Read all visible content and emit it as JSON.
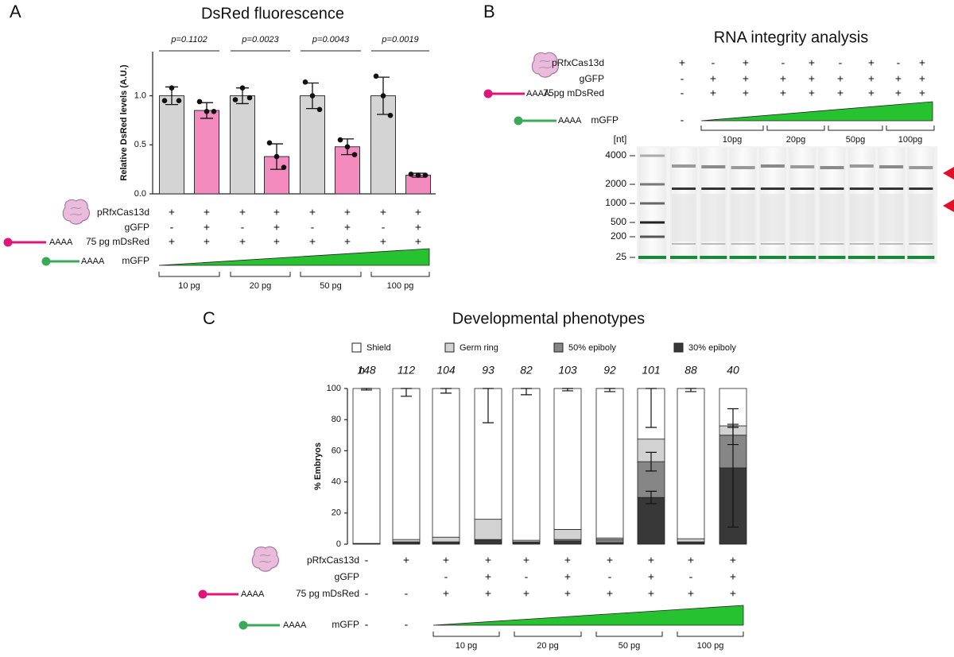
{
  "panel_labels": [
    "A",
    "B",
    "C"
  ],
  "poly_a": "AAAA",
  "chart_data": [
    {
      "type": "bar",
      "title": "DsRed fluorescence",
      "y_label": "Relative DsRed levels (A.U.)",
      "ylim": [
        0,
        1.45
      ],
      "yticks": [
        {
          "value": 0,
          "label": "0.0"
        },
        {
          "value": 0.5,
          "label": "0.5"
        },
        {
          "value": 1,
          "label": "1.0"
        }
      ],
      "values": [
        1.0,
        0.85,
        1.0,
        0.38,
        1.0,
        0.48,
        1.0,
        0.19
      ],
      "errors": [
        0.09,
        0.08,
        0.08,
        0.13,
        0.13,
        0.08,
        0.19,
        0.02
      ],
      "points": [
        [
          0.95,
          1.08,
          0.95
        ],
        [
          0.94,
          0.84,
          0.84
        ],
        [
          0.96,
          1.08,
          0.98
        ],
        [
          0.52,
          0.38,
          0.27
        ],
        [
          1.14,
          1.0,
          0.86
        ],
        [
          0.55,
          0.48,
          0.4
        ],
        [
          1.2,
          1.0,
          0.8
        ],
        [
          0.2,
          0.19,
          0.19
        ]
      ],
      "colors": [
        "#d4d4d4",
        "#f38bbf",
        "#d4d4d4",
        "#f38bbf",
        "#d4d4d4",
        "#f38bbf",
        "#d4d4d4",
        "#f38bbf"
      ],
      "annotations": [
        "p=0.1102",
        "p=0.0023",
        "p=0.0043",
        "p=0.0019"
      ]
    },
    {
      "type": "stacked_bar",
      "title": "Developmental phenotypes",
      "y_label": "% Embryos",
      "ylim": [
        0,
        100
      ],
      "yticks": [
        0,
        20,
        40,
        60,
        80,
        100
      ],
      "n_label": "n",
      "n": [
        148,
        112,
        104,
        93,
        82,
        103,
        92,
        101,
        88,
        40
      ],
      "series": [
        {
          "name": "Shield",
          "color": "#ffffff",
          "values": [
            99.5,
            97,
            95.5,
            84,
            97.5,
            90.5,
            96,
            32.5,
            96.5,
            24
          ],
          "errors": [
            1,
            5,
            3,
            22,
            4,
            1.5,
            2,
            25,
            2,
            null
          ]
        },
        {
          "name": "Germ ring",
          "color": "#d2d2d2",
          "values": [
            0,
            1.5,
            3,
            13,
            1,
            6.5,
            1,
            14.5,
            2,
            6
          ],
          "errors": [
            null,
            null,
            null,
            null,
            null,
            null,
            null,
            null,
            null,
            1
          ]
        },
        {
          "name": "50% epiboly",
          "color": "#868686",
          "values": [
            0,
            0.5,
            0.5,
            0,
            0.5,
            1,
            2,
            23,
            0.5,
            21
          ],
          "errors": [
            null,
            null,
            null,
            null,
            null,
            null,
            null,
            6,
            null,
            6
          ]
        },
        {
          "name": "30% epiboly",
          "color": "#383838",
          "values": [
            0.5,
            1,
            1,
            3,
            1,
            2,
            1,
            30,
            1,
            49
          ],
          "errors": [
            null,
            null,
            null,
            null,
            null,
            null,
            null,
            4,
            null,
            38
          ]
        }
      ]
    }
  ],
  "panel_a_conditions": {
    "rows": [
      {
        "label": "pRfxCas13d",
        "marks": [
          "+",
          "+",
          "+",
          "+",
          "+",
          "+",
          "+",
          "+"
        ]
      },
      {
        "label": "gGFP",
        "marks": [
          "-",
          "+",
          "-",
          "+",
          "-",
          "+",
          "-",
          "+"
        ]
      },
      {
        "label": "75 pg mDsRed",
        "marks": [
          "+",
          "+",
          "+",
          "+",
          "+",
          "+",
          "+",
          "+"
        ]
      }
    ],
    "mgfp_label": "mGFP",
    "doses": [
      "10 pg",
      "20 pg",
      "50 pg",
      "100 pg"
    ]
  },
  "panel_b": {
    "title": "RNA integrity analysis",
    "rows": [
      {
        "label": "pRfxCas13d",
        "marks": [
          "+",
          "-",
          "+",
          "-",
          "+",
          "-",
          "+",
          "-",
          "+"
        ]
      },
      {
        "label": "gGFP",
        "marks": [
          "-",
          "+",
          "+",
          "+",
          "+",
          "+",
          "+",
          "+",
          "+"
        ]
      },
      {
        "label": "75pg mDsRed",
        "marks": [
          "-",
          "+",
          "+",
          "+",
          "+",
          "+",
          "+",
          "+",
          "+"
        ]
      }
    ],
    "mgfp_label": "mGFP",
    "mgfp_marks": [
      "-"
    ],
    "doses": [
      "10pg",
      "20pg",
      "50pg",
      "100pg"
    ],
    "size_unit": "[nt]",
    "size_ladder": [
      4000,
      2000,
      1000,
      500,
      200,
      25
    ]
  },
  "panel_c_conditions": {
    "rows": [
      {
        "label": "pRfxCas13d",
        "marks": [
          "-",
          "+",
          "+",
          "+",
          "+",
          "+",
          "+",
          "+",
          "+",
          "+"
        ]
      },
      {
        "label": "gGFP",
        "marks": [
          null,
          null,
          "-",
          "+",
          "-",
          "+",
          "-",
          "+",
          "-",
          "+"
        ]
      },
      {
        "label": "75 pg mDsRed",
        "marks": [
          "-",
          "-",
          "+",
          "+",
          "+",
          "+",
          "+",
          "+",
          "+",
          "+"
        ]
      }
    ],
    "mgfp_label": "mGFP",
    "mgfp_marks": [
      "-",
      "-"
    ],
    "doses": [
      "10 pg",
      "20 pg",
      "50 pg",
      "100 pg"
    ]
  }
}
